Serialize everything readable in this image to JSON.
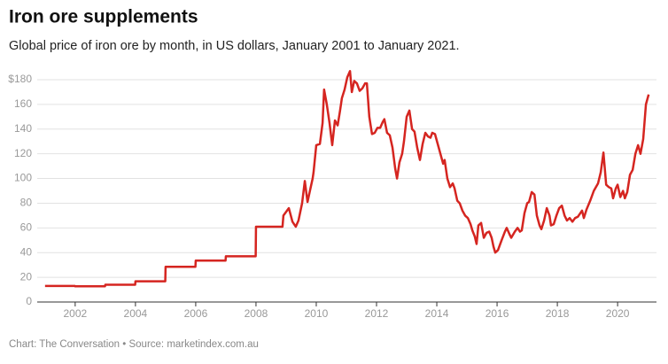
{
  "chart_data": {
    "type": "line",
    "title": "Iron ore supplements",
    "subtitle": "Global price of iron ore by month, in US dollars, January 2001 to January 2021.",
    "source": "Chart: The Conversation • Source: marketindex.com.au",
    "color": "#d52520",
    "x": [
      2001.0,
      2001.99,
      2002.0,
      2002.99,
      2003.0,
      2003.99,
      2004.0,
      2004.99,
      2005.0,
      2005.99,
      2006.0,
      2006.99,
      2007.0,
      2007.99,
      2008.0,
      2008.88,
      2008.91,
      2009.09,
      2009.21,
      2009.32,
      2009.41,
      2009.53,
      2009.62,
      2009.71,
      2009.79,
      2009.88,
      2009.91,
      2010.0,
      2010.12,
      2010.21,
      2010.26,
      2010.35,
      2010.44,
      2010.53,
      2010.62,
      2010.71,
      2010.79,
      2010.85,
      2010.94,
      2011.03,
      2011.12,
      2011.18,
      2011.26,
      2011.35,
      2011.44,
      2011.53,
      2011.62,
      2011.68,
      2011.76,
      2011.85,
      2011.94,
      2012.03,
      2012.12,
      2012.21,
      2012.26,
      2012.35,
      2012.44,
      2012.53,
      2012.62,
      2012.68,
      2012.76,
      2012.85,
      2012.91,
      2013.0,
      2013.09,
      2013.18,
      2013.26,
      2013.35,
      2013.44,
      2013.53,
      2013.62,
      2013.71,
      2013.79,
      2013.85,
      2013.94,
      2014.03,
      2014.12,
      2014.21,
      2014.26,
      2014.35,
      2014.44,
      2014.53,
      2014.59,
      2014.68,
      2014.76,
      2014.85,
      2014.94,
      2015.03,
      2015.12,
      2015.18,
      2015.26,
      2015.32,
      2015.38,
      2015.47,
      2015.56,
      2015.65,
      2015.74,
      2015.82,
      2015.88,
      2015.94,
      2016.03,
      2016.15,
      2016.26,
      2016.32,
      2016.41,
      2016.47,
      2016.59,
      2016.68,
      2016.76,
      2016.82,
      2016.91,
      2017.0,
      2017.06,
      2017.15,
      2017.24,
      2017.32,
      2017.41,
      2017.47,
      2017.56,
      2017.65,
      2017.74,
      2017.79,
      2017.88,
      2017.97,
      2018.06,
      2018.15,
      2018.24,
      2018.32,
      2018.41,
      2018.5,
      2018.59,
      2018.68,
      2018.82,
      2018.88,
      2018.97,
      2019.09,
      2019.21,
      2019.35,
      2019.44,
      2019.53,
      2019.62,
      2019.71,
      2019.79,
      2019.85,
      2019.94,
      2020.0,
      2020.09,
      2020.18,
      2020.24,
      2020.32,
      2020.41,
      2020.5,
      2020.59,
      2020.68,
      2020.76,
      2020.85,
      2020.94,
      2021.03
    ],
    "values": [
      13,
      13,
      12.7,
      12.7,
      14,
      14,
      16.8,
      16.8,
      28.5,
      28.5,
      33.5,
      33.5,
      37,
      37,
      61,
      61,
      70,
      76,
      65,
      61,
      66,
      80,
      98,
      81,
      90,
      100,
      105,
      127,
      128,
      145,
      172,
      160,
      145,
      127,
      147,
      143,
      155,
      165,
      172,
      182,
      187,
      170,
      179,
      177,
      171,
      173,
      177,
      177,
      150,
      136,
      137,
      141,
      141,
      146,
      148,
      137,
      135,
      125,
      108,
      100,
      113,
      120,
      130,
      150,
      155,
      140,
      138,
      125,
      115,
      128,
      137,
      134,
      133,
      137,
      136,
      128,
      120,
      112,
      115,
      100,
      93,
      96,
      92,
      82,
      80,
      74,
      70,
      68,
      63,
      58,
      53,
      47,
      62,
      64,
      52,
      56,
      57,
      52,
      45,
      40,
      42,
      50,
      57,
      60,
      55,
      52,
      57,
      60,
      57,
      58,
      72,
      80,
      81,
      89,
      87,
      70,
      62,
      59,
      66,
      76,
      70,
      62,
      63,
      70,
      76,
      78,
      70,
      66,
      68,
      65,
      68,
      69,
      74,
      68,
      75,
      82,
      90,
      96,
      105,
      121,
      95,
      93,
      92,
      84,
      92,
      95,
      85,
      90,
      84,
      89,
      103,
      107,
      120,
      127,
      120,
      132,
      160,
      168
    ],
    "xlim": [
      2000.74,
      2021.29
    ],
    "xticks": [
      2002,
      2004,
      2006,
      2008,
      2010,
      2012,
      2014,
      2016,
      2018,
      2020
    ],
    "ylim": [
      0,
      180
    ],
    "yticks": [
      0,
      20,
      40,
      60,
      80,
      100,
      120,
      140,
      160,
      {
        "value": 180,
        "label": "$180"
      }
    ],
    "grid": true
  }
}
